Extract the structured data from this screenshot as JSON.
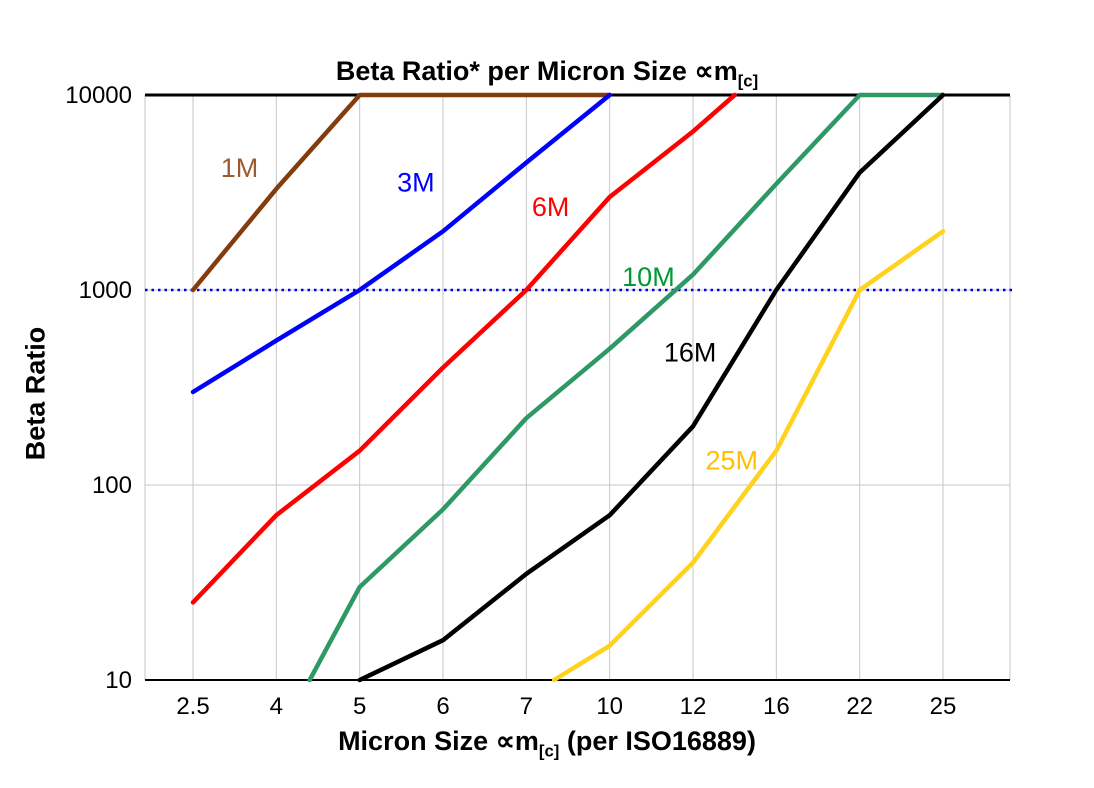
{
  "title": {
    "pre": "Beta Ratio* per Micron Size ∝m",
    "sub": "[c]"
  },
  "y_axis_title": "Beta Ratio",
  "x_axis_title": {
    "pre": "Micron Size ∝m",
    "sub": "[c]",
    "post": " (per ISO16889)"
  },
  "chart_data": {
    "type": "line",
    "x_scale": "categorical",
    "y_scale": "log",
    "categories": [
      2.5,
      4,
      5,
      6,
      7,
      10,
      12,
      16,
      22,
      25
    ],
    "category_labels": [
      "2.5",
      "4",
      "5",
      "6",
      "7",
      "10",
      "12",
      "16",
      "22",
      "25"
    ],
    "y_ticks": [
      10,
      100,
      1000,
      10000
    ],
    "ylim": [
      10,
      10000
    ],
    "grid": true,
    "gridline_color": "#c6c6c6",
    "reference_line": {
      "y": 1000,
      "color": "#0000e0",
      "style": "dotted"
    },
    "series": [
      {
        "name": "1M",
        "color": "#843C0C",
        "label_color": "#9C5B2E",
        "label": {
          "x": 3.0,
          "y": 3800
        },
        "points": [
          [
            2.5,
            1000
          ],
          [
            4,
            3300
          ],
          [
            5,
            10000
          ],
          [
            10,
            10000
          ]
        ]
      },
      {
        "name": "3M",
        "color": "#0000FF",
        "label_color": "#0000FF",
        "label": {
          "x": 5.45,
          "y": 3200
        },
        "points": [
          [
            2.5,
            300
          ],
          [
            4,
            550
          ],
          [
            5,
            1000
          ],
          [
            6,
            2000
          ],
          [
            7,
            4500
          ],
          [
            10,
            10000
          ]
        ]
      },
      {
        "name": "6M",
        "color": "#FF0000",
        "label_color": "#FF0000",
        "label": {
          "x": 7.2,
          "y": 2400
        },
        "points": [
          [
            2.5,
            25
          ],
          [
            4,
            70
          ],
          [
            5,
            150
          ],
          [
            6,
            400
          ],
          [
            7,
            1000
          ],
          [
            10,
            3000
          ],
          [
            12,
            6500
          ],
          [
            14,
            10000
          ]
        ]
      },
      {
        "name": "10M",
        "color": "#2E9966",
        "label_color": "#009933",
        "label": {
          "x": 10.3,
          "y": 1050
        },
        "points": [
          [
            4.4,
            10
          ],
          [
            5,
            30
          ],
          [
            6,
            75
          ],
          [
            7,
            220
          ],
          [
            10,
            500
          ],
          [
            12,
            1200
          ],
          [
            16,
            3500
          ],
          [
            22,
            10000
          ],
          [
            25,
            10000
          ]
        ]
      },
      {
        "name": "16M",
        "color": "#000000",
        "label_color": "#000000",
        "label": {
          "x": 11.3,
          "y": 430
        },
        "points": [
          [
            5,
            10
          ],
          [
            6,
            16
          ],
          [
            7,
            35
          ],
          [
            10,
            70
          ],
          [
            12,
            200
          ],
          [
            16,
            1000
          ],
          [
            22,
            4000
          ],
          [
            25,
            10000
          ]
        ]
      },
      {
        "name": "25M",
        "color": "#FFD21E",
        "label_color": "#FFC000",
        "label": {
          "x": 12.6,
          "y": 120
        },
        "points": [
          [
            8,
            10
          ],
          [
            10,
            15
          ],
          [
            12,
            40
          ],
          [
            16,
            150
          ],
          [
            22,
            1000
          ],
          [
            25,
            2000
          ]
        ]
      }
    ]
  }
}
